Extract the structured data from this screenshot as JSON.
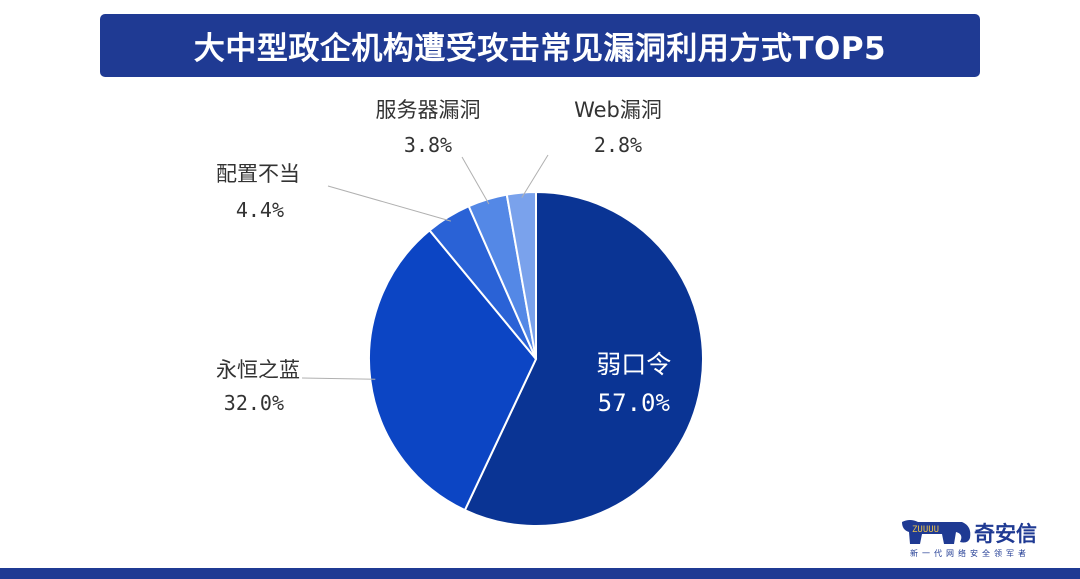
{
  "title": "大中型政企机构遭受攻击常见漏洞利用方式TOP5",
  "colors": {
    "banner": "#1f3a93",
    "bottom_bar": "#1f3a93",
    "label_text": "#333333",
    "leader_line": "#b0b0b0"
  },
  "chart_data": {
    "type": "pie",
    "title": "大中型政企机构遭受攻击常见漏洞利用方式TOP5",
    "start_angle_deg": 0,
    "direction": "clockwise",
    "legend": "none",
    "slices": [
      {
        "label": "弱口令",
        "value": 57.0,
        "display": "57.0%",
        "color": "#0a3494",
        "label_position": "inside"
      },
      {
        "label": "永恒之蓝",
        "value": 32.0,
        "display": "32.0%",
        "color": "#0c45c4",
        "label_position": "outside"
      },
      {
        "label": "配置不当",
        "value": 4.4,
        "display": "4.4%",
        "color": "#2a62d6",
        "label_position": "outside"
      },
      {
        "label": "服务器漏洞",
        "value": 3.8,
        "display": "3.8%",
        "color": "#5488e6",
        "label_position": "outside"
      },
      {
        "label": "Web漏洞",
        "value": 2.8,
        "display": "2.8%",
        "color": "#7aa2ec",
        "label_position": "outside"
      }
    ]
  },
  "logo": {
    "brand": "奇安信",
    "slogan": "新一代网络安全领军者",
    "mark_text": "ZUUUU"
  }
}
